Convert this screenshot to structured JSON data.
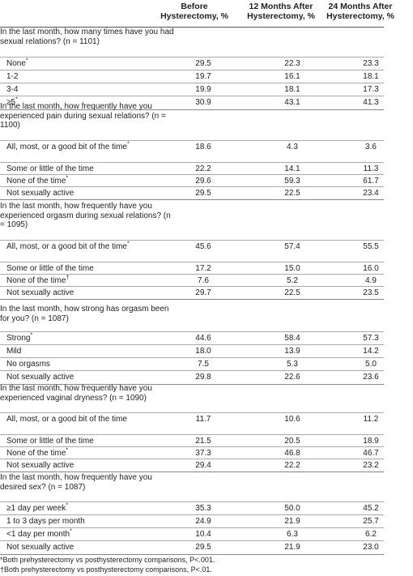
{
  "header": {
    "col1": "Before\nHysterectomy, %",
    "col2": "12 Months After\nHysterectomy, %",
    "col3": "24 Months After\nHysterectomy, %"
  },
  "sections": [
    {
      "question": "In the last month, how many times have you had sexual relations? (n = 1101)",
      "rows": [
        {
          "label": "None*",
          "v": [
            "29.5",
            "22.3",
            "23.3"
          ]
        },
        {
          "label": "1-2",
          "v": [
            "19.7",
            "16.1",
            "18.1"
          ]
        },
        {
          "label": "3-4",
          "v": [
            "19.9",
            "18.1",
            "17.3"
          ]
        },
        {
          "label": "≥5*",
          "v": [
            "30.9",
            "43.1",
            "41.3"
          ]
        }
      ]
    },
    {
      "question": "In the last month, how frequently have you experienced pain during sexual relations? (n = 1100)",
      "rows": [
        {
          "label": "All, most, or a good bit of the time*",
          "v": [
            "18.6",
            "4.3",
            "3.6"
          ]
        },
        {
          "label": "Some or little of the time",
          "v": [
            "22.2",
            "14.1",
            "11.3"
          ]
        },
        {
          "label": "None of the time*",
          "v": [
            "29.6",
            "59.3",
            "61.7"
          ]
        },
        {
          "label": "Not sexually active",
          "v": [
            "29.5",
            "22.5",
            "23.4"
          ]
        }
      ]
    },
    {
      "question": "In the last month, how frequently have you experienced orgasm during sexual relations? (n = 1095)",
      "rows": [
        {
          "label": "All, most, or a good bit of the time*",
          "v": [
            "45.6",
            "57.4",
            "55.5"
          ]
        },
        {
          "label": "Some or little of the time",
          "v": [
            "17.2",
            "15.0",
            "16.0"
          ]
        },
        {
          "label": "None of the time†",
          "v": [
            "7.6",
            "5.2",
            "4.9"
          ]
        },
        {
          "label": "Not sexually active",
          "v": [
            "29.7",
            "22.5",
            "23.5"
          ]
        }
      ]
    },
    {
      "question": "In the last month, how strong has orgasm been for you? (n = 1087)",
      "rows": [
        {
          "label": "Strong*",
          "v": [
            "44.6",
            "58.4",
            "57.3"
          ]
        },
        {
          "label": "Mild",
          "v": [
            "18.0",
            "13.9",
            "14.2"
          ]
        },
        {
          "label": "No orgasms",
          "v": [
            "7.5",
            "5.3",
            "5.0"
          ]
        },
        {
          "label": "Not sexually active",
          "v": [
            "29.8",
            "22.6",
            "23.6"
          ]
        }
      ]
    },
    {
      "question": "In the last month, how frequently have you experienced vaginal dryness? (n = 1090)",
      "rows": [
        {
          "label": "All, most, or a good bit of the time",
          "v": [
            "11.7",
            "10.6",
            "11.2"
          ]
        },
        {
          "label": "Some or little of the time",
          "v": [
            "21.5",
            "20.5",
            "18.9"
          ]
        },
        {
          "label": "None of the time*",
          "v": [
            "37.3",
            "46.8",
            "46.7"
          ]
        },
        {
          "label": "Not sexually active",
          "v": [
            "29.4",
            "22.2",
            "23.2"
          ]
        }
      ]
    },
    {
      "question": "In the last month, how frequently have you desired sex? (n = 1087)",
      "rows": [
        {
          "label": "≥1 day per week*",
          "v": [
            "35.3",
            "50.0",
            "45.2"
          ]
        },
        {
          "label": "1 to 3 days per month",
          "v": [
            "24.9",
            "21.9",
            "25.7"
          ]
        },
        {
          "label": "<1 day per month*",
          "v": [
            "10.4",
            "6.3",
            "6.2"
          ]
        },
        {
          "label": "Not sexually active",
          "v": [
            "29.5",
            "21.9",
            "23.0"
          ]
        }
      ]
    }
  ],
  "footnotes": [
    "*Both prehysterectomy vs posthysterectomy comparisons, P<.001.",
    "†Both prehysterectomy vs posthysterectomy comparisons, P<.01."
  ]
}
